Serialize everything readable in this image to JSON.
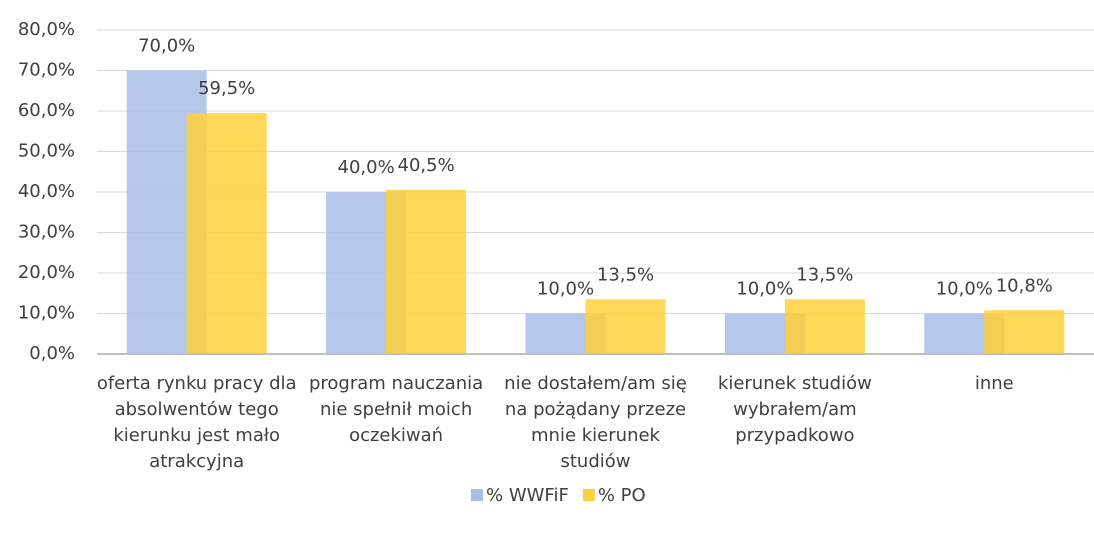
{
  "chart_data": {
    "type": "bar",
    "categories": [
      "oferta rynku pracy dla absolwentów tego kierunku jest mało atrakcyjna",
      "program nauczania nie spełnił moich oczekiwań",
      "nie dostałem/am się na pożądany przeze mnie kierunek studiów",
      "kierunek studiów wybrałem/am przypadkowo",
      "inne"
    ],
    "series": [
      {
        "name": "% WWFiF",
        "color": "#a9bde8",
        "values": [
          70,
          40,
          10,
          10,
          10
        ],
        "value_labels": [
          "70,0%",
          "40,0%",
          "10,0%",
          "10,0%",
          "10,0%"
        ]
      },
      {
        "name": "% PO",
        "color": "#ffd03c",
        "values": [
          59.5,
          40.5,
          13.5,
          13.5,
          10.8
        ],
        "value_labels": [
          "59,5%",
          "40,5%",
          "13,5%",
          "13,5%",
          "10,8%"
        ]
      }
    ],
    "ylim": [
      0,
      80
    ],
    "yticks": [
      {
        "value": 0,
        "label": "0,0%"
      },
      {
        "value": 10,
        "label": "10,0%"
      },
      {
        "value": 20,
        "label": "20,0%"
      },
      {
        "value": 30,
        "label": "30,0%"
      },
      {
        "value": 40,
        "label": "40,0%"
      },
      {
        "value": 50,
        "label": "50,0%"
      },
      {
        "value": 60,
        "label": "60,0%"
      },
      {
        "value": 70,
        "label": "70,0%"
      },
      {
        "value": 80,
        "label": "80,0%"
      }
    ],
    "grid": true,
    "legend": "bottom"
  }
}
